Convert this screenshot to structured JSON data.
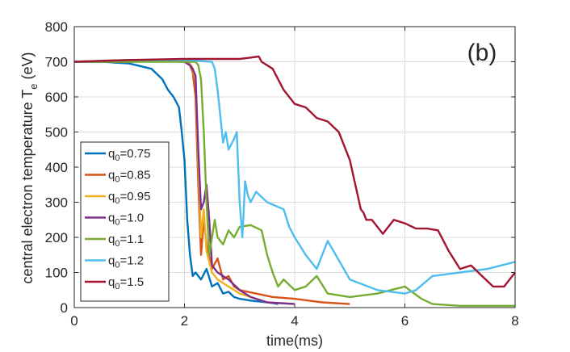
{
  "chart_data": {
    "type": "line",
    "panel_label": "(b)",
    "xlabel": "time(ms)",
    "ylabel": "central electron temperature T",
    "ylabel_sub": "e",
    "ylabel_unit": " (eV)",
    "xlim": [
      0,
      8
    ],
    "ylim": [
      0,
      800
    ],
    "xticks": [
      0,
      2,
      4,
      6,
      8
    ],
    "yticks": [
      0,
      100,
      200,
      300,
      400,
      500,
      600,
      700,
      800
    ],
    "grid": true,
    "legend_position": "bottom-left",
    "series": [
      {
        "label": "q",
        "label_sub": "0",
        "label_value": "=0.75",
        "color": "#0072BD",
        "x": [
          0,
          0.5,
          1.0,
          1.4,
          1.6,
          1.7,
          1.8,
          1.9,
          1.95,
          2.0,
          2.02,
          2.05,
          2.1,
          2.15,
          2.2,
          2.3,
          2.4,
          2.5,
          2.6,
          2.7,
          2.8,
          2.9,
          3.0,
          3.2,
          3.5,
          3.7
        ],
        "y": [
          700,
          700,
          695,
          680,
          650,
          620,
          600,
          570,
          500,
          420,
          350,
          250,
          150,
          90,
          100,
          80,
          110,
          60,
          70,
          40,
          45,
          30,
          25,
          20,
          15,
          10
        ]
      },
      {
        "label": "q",
        "label_sub": "0",
        "label_value": "=0.85",
        "color": "#D95319",
        "x": [
          0,
          1.0,
          1.5,
          2.0,
          2.1,
          2.15,
          2.2,
          2.25,
          2.3,
          2.35,
          2.4,
          2.5,
          2.6,
          2.7,
          2.8,
          2.9,
          3.0,
          3.3,
          3.6,
          4.0,
          4.5,
          5.0
        ],
        "y": [
          700,
          705,
          702,
          700,
          690,
          670,
          600,
          350,
          150,
          250,
          180,
          110,
          140,
          80,
          90,
          60,
          50,
          40,
          30,
          25,
          15,
          10
        ]
      },
      {
        "label": "q",
        "label_sub": "0",
        "label_value": "=0.95",
        "color": "#EDB120",
        "x": [
          0,
          1.0,
          1.5,
          2.0,
          2.1,
          2.15,
          2.2,
          2.25,
          2.3,
          2.35,
          2.4,
          2.5,
          2.6,
          2.8,
          3.0,
          3.2,
          3.5,
          4.0
        ],
        "y": [
          700,
          705,
          703,
          700,
          695,
          680,
          650,
          420,
          200,
          280,
          160,
          100,
          80,
          60,
          40,
          30,
          15,
          10
        ]
      },
      {
        "label": "q",
        "label_sub": "0",
        "label_value": "=1.0",
        "color": "#7E2F8E",
        "x": [
          0,
          1.0,
          1.5,
          2.0,
          2.1,
          2.15,
          2.2,
          2.25,
          2.3,
          2.35,
          2.4,
          2.45,
          2.5,
          2.6,
          2.8,
          3.0,
          3.2,
          3.5,
          4.0
        ],
        "y": [
          700,
          700,
          702,
          700,
          690,
          680,
          660,
          450,
          280,
          300,
          350,
          250,
          120,
          100,
          80,
          50,
          30,
          15,
          10
        ]
      },
      {
        "label": "q",
        "label_sub": "0",
        "label_value": "=1.1",
        "color": "#77AC30",
        "x": [
          0,
          1.0,
          2.0,
          2.2,
          2.25,
          2.3,
          2.35,
          2.4,
          2.45,
          2.5,
          2.55,
          2.6,
          2.7,
          2.8,
          2.9,
          3.0,
          3.2,
          3.4,
          3.5,
          3.6,
          3.7,
          3.8,
          4.0,
          4.2,
          4.4,
          4.6,
          5.0,
          5.5,
          6.0,
          6.3,
          6.5,
          7.0,
          8.0
        ],
        "y": [
          700,
          700,
          700,
          700,
          690,
          650,
          500,
          300,
          150,
          200,
          250,
          200,
          180,
          220,
          200,
          230,
          235,
          220,
          150,
          100,
          60,
          80,
          50,
          60,
          90,
          40,
          30,
          40,
          60,
          25,
          10,
          5,
          5
        ]
      },
      {
        "label": "q",
        "label_sub": "0",
        "label_value": "=1.2",
        "color": "#4DBEEE",
        "x": [
          0,
          1.0,
          2.0,
          2.5,
          2.55,
          2.6,
          2.7,
          2.75,
          2.8,
          2.9,
          2.95,
          3.0,
          3.05,
          3.1,
          3.15,
          3.2,
          3.3,
          3.5,
          3.8,
          3.9,
          4.0,
          4.2,
          4.4,
          4.6,
          5.0,
          5.5,
          6.0,
          6.2,
          6.5,
          7.0,
          7.5,
          8.0
        ],
        "y": [
          700,
          705,
          705,
          700,
          680,
          620,
          470,
          500,
          450,
          480,
          500,
          300,
          200,
          360,
          320,
          300,
          330,
          300,
          280,
          230,
          200,
          150,
          110,
          190,
          80,
          50,
          40,
          50,
          90,
          100,
          110,
          130
        ]
      },
      {
        "label": "q",
        "label_sub": "0",
        "label_value": "=1.5",
        "color": "#A2142F",
        "x": [
          0,
          1.0,
          2.0,
          3.0,
          3.2,
          3.35,
          3.4,
          3.6,
          3.8,
          4.0,
          4.2,
          4.4,
          4.6,
          4.8,
          5.0,
          5.2,
          5.25,
          5.3,
          5.4,
          5.6,
          5.8,
          6.0,
          6.2,
          6.4,
          6.6,
          6.8,
          7.0,
          7.2,
          7.4,
          7.6,
          7.8,
          8.0
        ],
        "y": [
          700,
          705,
          708,
          708,
          712,
          715,
          700,
          680,
          620,
          580,
          570,
          540,
          530,
          500,
          420,
          280,
          270,
          250,
          250,
          210,
          250,
          240,
          225,
          225,
          220,
          160,
          110,
          120,
          90,
          60,
          60,
          100
        ]
      }
    ]
  }
}
